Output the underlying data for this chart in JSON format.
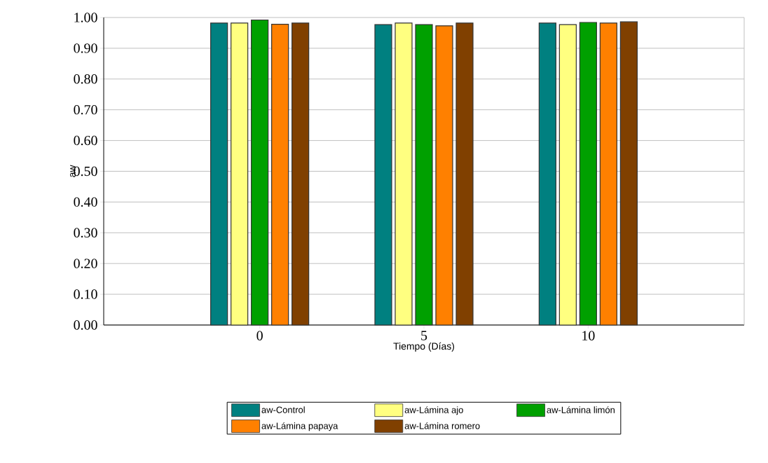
{
  "chart_data": {
    "type": "bar",
    "xlabel": "Tiempo (Días)",
    "ylabel": "aw",
    "categories": [
      "0",
      "5",
      "10"
    ],
    "series": [
      {
        "name": "aw-Control",
        "color": "#008080",
        "values": [
          0.982,
          0.977,
          0.982
        ]
      },
      {
        "name": "aw-Lámina ajo",
        "color": "#ffff80",
        "values": [
          0.982,
          0.982,
          0.977
        ]
      },
      {
        "name": "aw-Lámina limón",
        "color": "#00a000",
        "values": [
          0.992,
          0.977,
          0.984
        ]
      },
      {
        "name": "aw-Lámina papaya",
        "color": "#ff8000",
        "values": [
          0.978,
          0.973,
          0.982
        ]
      },
      {
        "name": "aw-Lámina romero",
        "color": "#804000",
        "values": [
          0.982,
          0.982,
          0.986
        ]
      }
    ],
    "ylim": [
      0,
      1
    ],
    "yticks": [
      {
        "value": 0,
        "label": "0.00"
      },
      {
        "value": 0.1,
        "label": "0.10"
      },
      {
        "value": 0.2,
        "label": "0.20"
      },
      {
        "value": 0.3,
        "label": "0.30"
      },
      {
        "value": 0.4,
        "label": "0.40"
      },
      {
        "value": 0.5,
        "label": "0.50"
      },
      {
        "value": 0.6,
        "label": "0.60"
      },
      {
        "value": 0.7,
        "label": "0.70"
      },
      {
        "value": 0.8,
        "label": "0.80"
      },
      {
        "value": 0.9,
        "label": "0.90"
      },
      {
        "value": 1,
        "label": "1.00"
      }
    ],
    "grid": "y",
    "legend": "bottom"
  }
}
